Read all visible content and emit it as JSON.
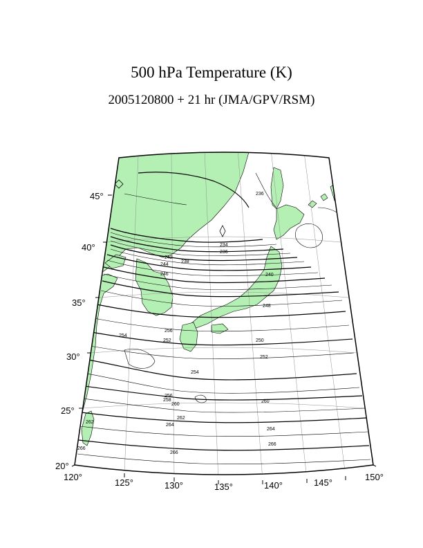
{
  "title": "500 hPa Temperature (K)",
  "subtitle": "2005120800 + 21 hr (JMA/GPV/RSM)",
  "colors": {
    "land": "#b4f0b4",
    "coast": "#000000",
    "contour": "#000000",
    "grid": "#909090"
  },
  "lon_labels": [
    "120°",
    "125°",
    "130°",
    "135°",
    "140°",
    "145°",
    "150°"
  ],
  "lat_labels": [
    "20°",
    "25°",
    "30°",
    "35°",
    "40°",
    "45°"
  ],
  "contour_labels": [
    "234",
    "236",
    "238",
    "240",
    "242",
    "244",
    "246",
    "248",
    "250",
    "252",
    "254",
    "256",
    "258",
    "260",
    "262",
    "264",
    "266"
  ]
}
